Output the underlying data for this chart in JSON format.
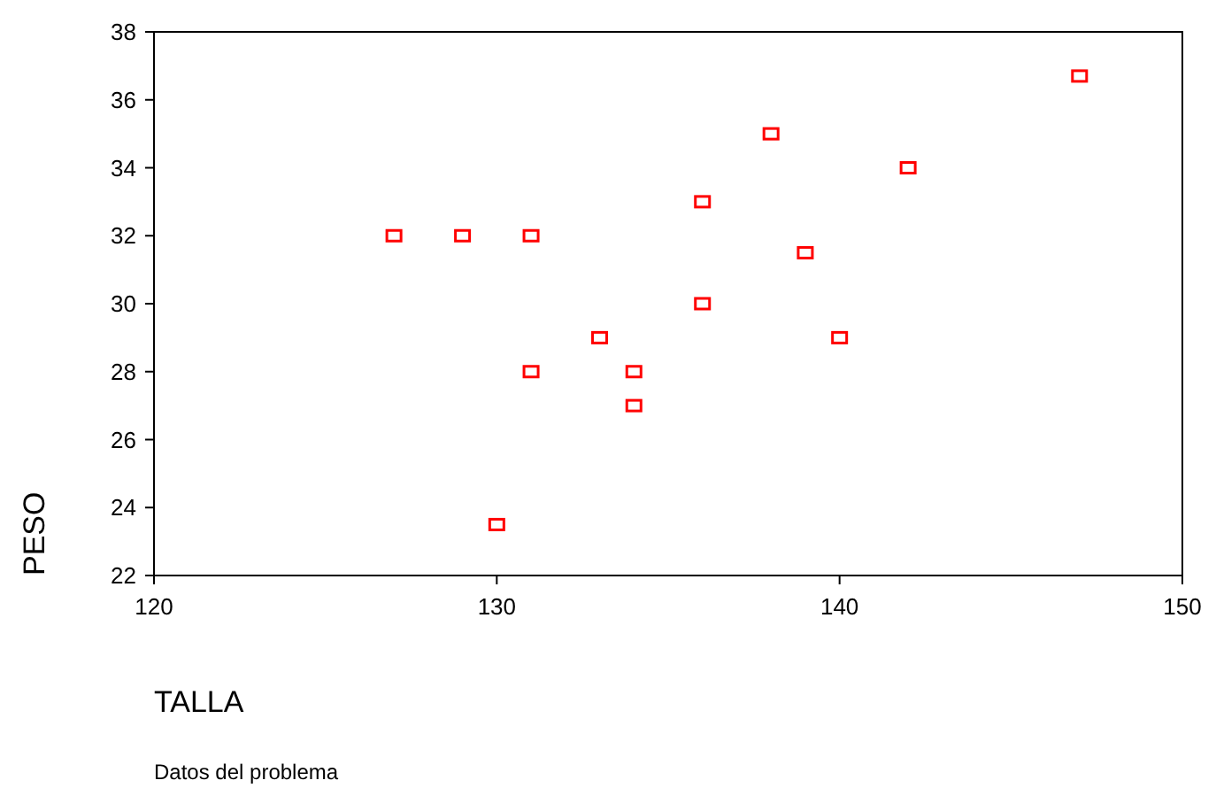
{
  "chart_data": {
    "type": "scatter",
    "xlabel": "TALLA",
    "ylabel": "PESO",
    "annotations": [
      "Datos del problema"
    ],
    "x": [
      127,
      129,
      131,
      133,
      131,
      134,
      134,
      130,
      136,
      136,
      138,
      139,
      140,
      142,
      147
    ],
    "series": [
      {
        "color": "#ff0000",
        "values": [
          32,
          32,
          32,
          29,
          28,
          28,
          27,
          23.5,
          33,
          30,
          35,
          31.5,
          29,
          34,
          36.7
        ]
      }
    ],
    "xlim": [
      120,
      150
    ],
    "xticks": [
      120,
      130,
      140,
      150
    ],
    "ylim": [
      22,
      38
    ],
    "yticks": [
      22,
      24,
      26,
      28,
      30,
      32,
      34,
      36,
      38
    ],
    "grid": false,
    "marker": "square"
  }
}
